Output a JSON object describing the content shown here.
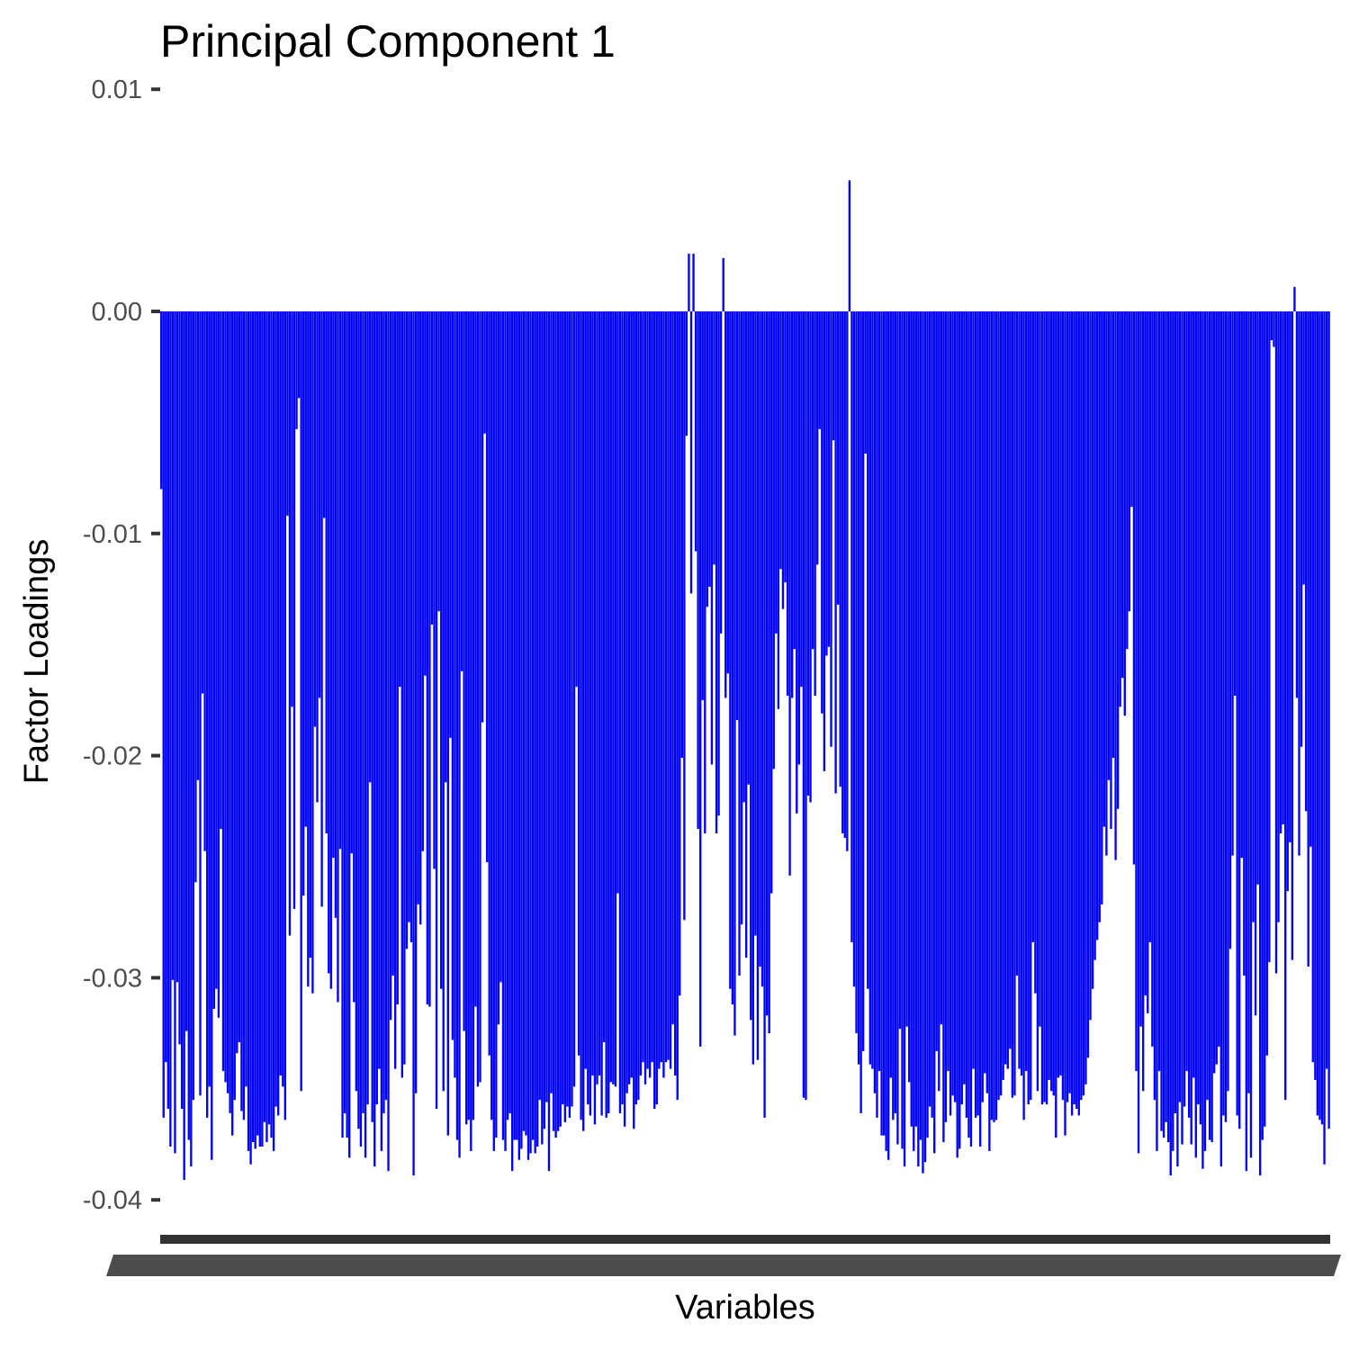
{
  "chart_data": {
    "type": "bar",
    "title": "Principal Component 1",
    "xlabel": "Variables",
    "ylabel": "Factor Loadings",
    "ylim": [
      -0.0415,
      0.0101
    ],
    "yticks": [
      0.01,
      0.0,
      -0.01,
      -0.02,
      -0.03,
      -0.04
    ],
    "ytick_labels": [
      "0.01",
      "0.00",
      "-0.01",
      "-0.02",
      "-0.03",
      "-0.04"
    ],
    "grid": false,
    "legend": "none",
    "bar_color": "#0000ff",
    "axis_color": "#333333",
    "tick_label_color": "#4d4d4d",
    "n_variables": 500,
    "values": [
      -0.008,
      -0.0363,
      -0.0338,
      -0.0359,
      -0.0376,
      -0.0301,
      -0.0379,
      -0.0302,
      -0.033,
      -0.0359,
      -0.0391,
      -0.0324,
      -0.0373,
      -0.0385,
      -0.0355,
      -0.0257,
      -0.0211,
      -0.0353,
      -0.0172,
      -0.0243,
      -0.0363,
      -0.0349,
      -0.0382,
      -0.0314,
      -0.0305,
      -0.0318,
      -0.0233,
      -0.0342,
      -0.0347,
      -0.0352,
      -0.0361,
      -0.0371,
      -0.0355,
      -0.0334,
      -0.0329,
      -0.036,
      -0.0364,
      -0.0349,
      -0.0378,
      -0.0384,
      -0.0374,
      -0.0377,
      -0.0371,
      -0.0376,
      -0.0376,
      -0.0365,
      -0.0374,
      -0.0366,
      -0.0372,
      -0.0378,
      -0.0358,
      -0.0362,
      -0.0344,
      -0.0349,
      -0.0364,
      -0.0092,
      -0.0281,
      -0.0178,
      -0.0269,
      -0.0053,
      -0.0039,
      -0.0351,
      -0.0263,
      -0.0232,
      -0.0304,
      -0.0291,
      -0.0307,
      -0.0187,
      -0.0221,
      -0.0174,
      -0.0268,
      -0.0093,
      -0.0235,
      -0.0298,
      -0.0305,
      -0.0246,
      -0.0273,
      -0.0311,
      -0.0242,
      -0.0372,
      -0.0361,
      -0.0372,
      -0.0381,
      -0.0244,
      -0.0311,
      -0.0351,
      -0.0368,
      -0.0376,
      -0.0361,
      -0.0381,
      -0.0357,
      -0.0212,
      -0.0365,
      -0.0385,
      -0.0357,
      -0.0341,
      -0.0378,
      -0.0361,
      -0.0355,
      -0.0387,
      -0.0319,
      -0.0299,
      -0.0341,
      -0.0312,
      -0.0169,
      -0.0345,
      -0.0339,
      -0.0287,
      -0.0275,
      -0.0284,
      -0.0389,
      -0.0352,
      -0.0267,
      -0.0276,
      -0.0243,
      -0.0164,
      -0.0312,
      -0.0313,
      -0.0141,
      -0.0251,
      -0.0359,
      -0.0135,
      -0.0305,
      -0.0351,
      -0.0212,
      -0.0371,
      -0.0192,
      -0.0328,
      -0.0345,
      -0.0373,
      -0.0381,
      -0.0162,
      -0.0324,
      -0.0366,
      -0.0364,
      -0.0378,
      -0.0364,
      -0.0313,
      -0.0349,
      -0.0347,
      -0.0185,
      -0.0055,
      -0.0248,
      -0.0335,
      -0.0364,
      -0.0378,
      -0.0372,
      -0.0321,
      -0.0302,
      -0.0373,
      -0.0378,
      -0.0364,
      -0.0361,
      -0.0387,
      -0.0373,
      -0.0373,
      -0.0382,
      -0.0377,
      -0.0369,
      -0.0371,
      -0.0382,
      -0.0379,
      -0.0373,
      -0.0379,
      -0.0376,
      -0.0355,
      -0.0375,
      -0.0368,
      -0.0356,
      -0.0387,
      -0.0352,
      -0.0369,
      -0.0372,
      -0.0369,
      -0.0367,
      -0.0357,
      -0.0365,
      -0.0358,
      -0.0363,
      -0.0358,
      -0.0349,
      -0.0169,
      -0.0335,
      -0.0364,
      -0.0369,
      -0.0341,
      -0.0357,
      -0.0362,
      -0.0344,
      -0.0366,
      -0.0348,
      -0.0344,
      -0.0362,
      -0.0329,
      -0.0363,
      -0.0361,
      -0.0347,
      -0.0348,
      -0.0349,
      -0.0262,
      -0.0361,
      -0.0357,
      -0.0367,
      -0.0352,
      -0.0348,
      -0.0345,
      -0.0368,
      -0.0357,
      -0.0355,
      -0.0344,
      -0.0338,
      -0.0348,
      -0.0341,
      -0.0345,
      -0.0338,
      -0.0359,
      -0.0357,
      -0.0341,
      -0.0338,
      -0.0345,
      -0.0338,
      -0.0337,
      -0.0341,
      -0.0321,
      -0.0344,
      -0.0355,
      -0.0308,
      -0.0201,
      -0.0274,
      -0.0056,
      0.0026,
      -0.0127,
      0.0026,
      -0.0108,
      -0.0233,
      -0.0331,
      -0.0175,
      -0.0235,
      -0.0133,
      -0.0124,
      -0.0204,
      -0.0114,
      -0.0235,
      -0.0227,
      -0.0145,
      0.0024,
      -0.0174,
      -0.0163,
      -0.0305,
      -0.0312,
      -0.0326,
      -0.0184,
      -0.0299,
      -0.0276,
      -0.0221,
      -0.0291,
      -0.0213,
      -0.0319,
      -0.0339,
      -0.0281,
      -0.0337,
      -0.0295,
      -0.0304,
      -0.0363,
      -0.0317,
      -0.0325,
      -0.0262,
      -0.0206,
      -0.0145,
      -0.0179,
      -0.0116,
      -0.0134,
      -0.0122,
      -0.0173,
      -0.0254,
      -0.0174,
      -0.0152,
      -0.0226,
      -0.0204,
      -0.0169,
      -0.0354,
      -0.0355,
      -0.0218,
      -0.0221,
      -0.0152,
      -0.0173,
      -0.0114,
      -0.0053,
      -0.0181,
      -0.0207,
      -0.0155,
      -0.0151,
      -0.0196,
      -0.0058,
      -0.0217,
      -0.0132,
      -0.0214,
      -0.0235,
      -0.0237,
      -0.0243,
      0.0059,
      -0.0284,
      -0.0304,
      -0.0325,
      -0.0339,
      -0.0361,
      -0.0333,
      -0.0064,
      -0.0305,
      -0.0339,
      -0.0341,
      -0.0352,
      -0.0363,
      -0.0342,
      -0.0371,
      -0.0371,
      -0.0378,
      -0.0382,
      -0.0345,
      -0.0364,
      -0.0361,
      -0.0375,
      -0.0323,
      -0.0377,
      -0.0385,
      -0.0322,
      -0.0347,
      -0.0367,
      -0.0378,
      -0.0367,
      -0.0385,
      -0.0373,
      -0.0388,
      -0.0383,
      -0.0372,
      -0.0358,
      -0.0363,
      -0.0379,
      -0.0333,
      -0.0351,
      -0.0321,
      -0.0374,
      -0.0365,
      -0.0342,
      -0.0362,
      -0.0353,
      -0.0356,
      -0.0381,
      -0.0377,
      -0.0357,
      -0.0348,
      -0.0363,
      -0.0372,
      -0.0376,
      -0.0341,
      -0.0363,
      -0.0362,
      -0.0376,
      -0.0356,
      -0.0343,
      -0.0352,
      -0.0378,
      -0.0364,
      -0.0365,
      -0.0364,
      -0.0355,
      -0.0353,
      -0.0346,
      -0.0339,
      -0.0341,
      -0.0332,
      -0.0354,
      -0.0353,
      -0.0299,
      -0.0341,
      -0.0344,
      -0.0364,
      -0.0342,
      -0.0357,
      -0.0355,
      -0.0284,
      -0.0307,
      -0.0351,
      -0.0322,
      -0.0357,
      -0.0356,
      -0.0357,
      -0.0346,
      -0.0351,
      -0.0353,
      -0.0372,
      -0.0345,
      -0.0344,
      -0.0355,
      -0.0371,
      -0.0356,
      -0.0352,
      -0.0362,
      -0.0357,
      -0.0359,
      -0.0362,
      -0.0355,
      -0.0353,
      -0.0348,
      -0.0336,
      -0.0319,
      -0.0305,
      -0.0292,
      -0.0283,
      -0.0275,
      -0.0267,
      -0.0232,
      -0.0245,
      -0.0211,
      -0.0233,
      -0.0201,
      -0.0247,
      -0.0224,
      -0.0178,
      -0.0165,
      -0.0182,
      -0.0152,
      -0.0135,
      -0.0088,
      -0.0249,
      -0.0342,
      -0.0379,
      -0.0322,
      -0.0351,
      -0.0308,
      -0.0316,
      -0.0284,
      -0.0331,
      -0.0355,
      -0.0378,
      -0.0342,
      -0.0369,
      -0.0372,
      -0.0365,
      -0.0374,
      -0.0389,
      -0.0378,
      -0.0361,
      -0.0385,
      -0.0356,
      -0.0375,
      -0.0358,
      -0.0342,
      -0.0363,
      -0.0375,
      -0.0345,
      -0.0381,
      -0.0357,
      -0.0366,
      -0.0386,
      -0.0378,
      -0.0355,
      -0.0373,
      -0.0374,
      -0.0343,
      -0.0339,
      -0.0331,
      -0.0385,
      -0.0362,
      -0.0365,
      -0.0351,
      -0.0287,
      -0.0245,
      -0.0173,
      -0.0362,
      -0.0368,
      -0.0246,
      -0.0299,
      -0.0387,
      -0.0352,
      -0.0381,
      -0.0275,
      -0.0317,
      -0.0258,
      -0.0389,
      -0.0373,
      -0.0367,
      -0.0335,
      -0.0293,
      -0.0013,
      -0.0016,
      -0.0298,
      -0.0275,
      -0.0235,
      -0.0231,
      -0.0355,
      -0.0261,
      -0.0239,
      -0.0292,
      0.0011,
      -0.0174,
      -0.0245,
      -0.0196,
      -0.0123,
      -0.0225,
      -0.0295,
      -0.0241,
      -0.0338,
      -0.0346,
      -0.0362,
      -0.0364,
      -0.0366,
      -0.0384,
      -0.0341,
      -0.0368
    ]
  }
}
